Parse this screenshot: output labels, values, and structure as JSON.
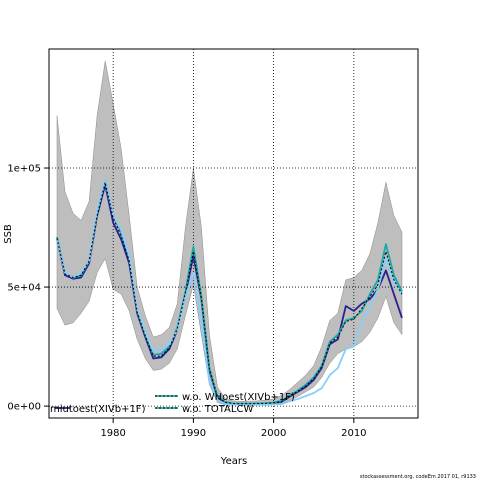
{
  "chart_data": {
    "type": "line",
    "xlabel": "Years",
    "ylabel": "SSB",
    "xlim": [
      1972,
      2018
    ],
    "ylim": [
      -5000,
      150000
    ],
    "x_ticks": [
      1980,
      1990,
      2000,
      2010
    ],
    "y_ticks": [
      {
        "value": 0,
        "label": "0e+00"
      },
      {
        "value": 50000,
        "label": "5e+04"
      },
      {
        "value": 100000,
        "label": "1e+05"
      }
    ],
    "grid": "dotted, at ticks",
    "legend_position": "bottom",
    "years": [
      1973,
      1974,
      1975,
      1976,
      1977,
      1978,
      1979,
      1980,
      1981,
      1982,
      1983,
      1984,
      1985,
      1986,
      1987,
      1988,
      1989,
      1990,
      1991,
      1992,
      1993,
      1994,
      1995,
      1996,
      1997,
      1998,
      1999,
      2000,
      2001,
      2002,
      2003,
      2004,
      2005,
      2006,
      2007,
      2008,
      2009,
      2010,
      2011,
      2012,
      2013,
      2014,
      2015,
      2016
    ],
    "band": {
      "color": "#bebebe",
      "upper": [
        122000,
        90000,
        81000,
        78000,
        86000,
        122000,
        145000,
        127000,
        108000,
        80000,
        50000,
        38000,
        29000,
        30000,
        33000,
        43000,
        75000,
        100000,
        75000,
        30000,
        8000,
        3000,
        2200,
        2000,
        2100,
        2200,
        2500,
        3000,
        4500,
        7000,
        10000,
        13000,
        17000,
        25000,
        36000,
        39000,
        53000,
        54000,
        57000,
        64000,
        77000,
        94000,
        80000,
        73000
      ],
      "lower": [
        41000,
        34000,
        35000,
        39000,
        44000,
        56000,
        62000,
        49000,
        47000,
        40000,
        28000,
        20000,
        15000,
        15500,
        18000,
        24000,
        38000,
        51000,
        30000,
        9000,
        1500,
        500,
        400,
        400,
        400,
        500,
        600,
        800,
        1200,
        2500,
        4000,
        6000,
        8000,
        12000,
        18000,
        22000,
        24000,
        25000,
        27000,
        31000,
        37000,
        46000,
        35000,
        30000
      ]
    },
    "series": [
      {
        "name": "miutoest(XIVb+1F)",
        "color": "#2a1f8f",
        "width": 1.8,
        "dash": "",
        "values": [
          70000,
          55000,
          53500,
          54000,
          60000,
          80000,
          93000,
          77000,
          70000,
          60000,
          39000,
          29000,
          20000,
          20500,
          24000,
          32000,
          47000,
          63000,
          45000,
          15000,
          3500,
          1500,
          1000,
          900,
          900,
          1000,
          1100,
          1300,
          1800,
          4000,
          6000,
          8000,
          11000,
          16000,
          26000,
          28000,
          42000,
          40000,
          43000,
          45000,
          49000,
          57000,
          47000,
          37000
        ]
      },
      {
        "name": "w.o. WHoest(XIVb+1F)",
        "color": "#1aa8a8",
        "width": 1.8,
        "dash": "",
        "values": [
          71000,
          56000,
          54000,
          55000,
          61000,
          81000,
          95000,
          80000,
          73000,
          62000,
          40000,
          30000,
          21500,
          22000,
          25000,
          33000,
          48000,
          67000,
          46000,
          16000,
          4000,
          1700,
          1100,
          1000,
          1000,
          1100,
          1200,
          1500,
          2200,
          4500,
          6500,
          9000,
          12000,
          17000,
          27000,
          30000,
          36000,
          37000,
          40000,
          47000,
          53000,
          68000,
          55000,
          48000
        ]
      },
      {
        "name": "w.o. TOTALCW",
        "color": "#87cefa",
        "width": 1.8,
        "dash": "",
        "values": [
          70000,
          56000,
          54000,
          56000,
          61000,
          82000,
          95000,
          80000,
          74000,
          63000,
          41000,
          31000,
          23000,
          23500,
          26000,
          32000,
          46000,
          56000,
          35000,
          10000,
          2500,
          900,
          600,
          500,
          500,
          550,
          600,
          700,
          900,
          2000,
          3000,
          4200,
          5500,
          7500,
          13000,
          16000,
          24000,
          25000,
          35000,
          42000,
          49000,
          62000,
          52000,
          47000
        ]
      },
      {
        "name": "",
        "color": "#000000",
        "width": 1.0,
        "dash": "2,2",
        "values": [
          70500,
          55500,
          54000,
          55000,
          61000,
          80000,
          94000,
          79000,
          71500,
          61000,
          39500,
          29500,
          21000,
          21000,
          24500,
          32500,
          47500,
          65000,
          45500,
          15500,
          3800,
          1600,
          1050,
          950,
          950,
          1050,
          1150,
          1400,
          2000,
          4300,
          6200,
          8500,
          11500,
          16500,
          26500,
          29000,
          35500,
          36500,
          41000,
          46000,
          51000,
          65000,
          53000,
          47000
        ]
      }
    ],
    "legend": [
      {
        "label": "miutoest(XIVb+1F)",
        "color": "#2a1f8f",
        "line": "solid"
      },
      {
        "label": "w.o. WHoest(XIVb+1F)",
        "color": "#1aa8a8",
        "line": "dotted-dark"
      },
      {
        "label": "w.o. TOTALCW",
        "color": "#1aa8a8",
        "line": "dotted-dark"
      }
    ]
  },
  "footer": {
    "site": "stockassessment.org, codeEm  2017 01, r9133"
  }
}
